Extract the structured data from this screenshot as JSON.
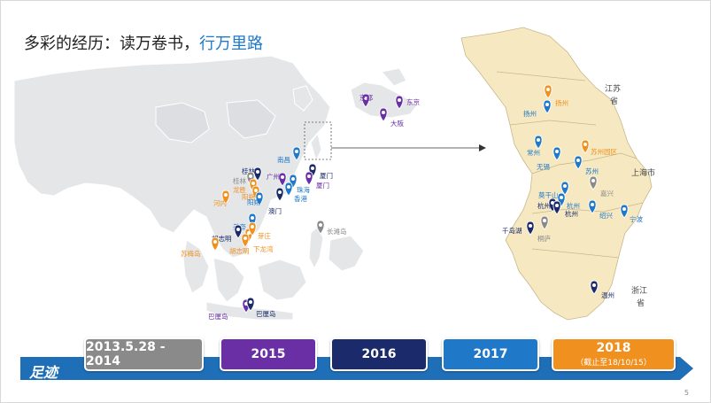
{
  "title": {
    "main": "多彩的经历：读万卷书，",
    "accent": "行万里路"
  },
  "colors": {
    "2014": "#8a8a8a",
    "2015": "#6a2fa5",
    "2016": "#1b2a6b",
    "2017": "#1f78c8",
    "2018": "#f0901e"
  },
  "map_labels": {
    "kyoto": "京都",
    "tokyo": "东京",
    "osaka": "大阪",
    "nanchang": "南昌",
    "xiamen1": "厦门",
    "xiamen2": "厦门",
    "guilin1": "桂林",
    "guilin2": "桂林",
    "guangzhou": "广州",
    "longsheng": "龙胜",
    "zhuhai": "珠海",
    "hongkong": "香港",
    "macau": "澳门",
    "yangshuo1": "阳朔",
    "yangshuo2": "阳朔",
    "hanoi": "河内",
    "changtan": "长滩岛",
    "meinai": "美奈",
    "hcmc1": "胡志明",
    "hcmc2": "胡志明",
    "yazhuang": "芽庄",
    "xialongwan": "下龙湾",
    "sumeidao": "苏梅岛",
    "bali1": "巴厘岛",
    "bali2": "巴厘岛",
    "jiangsu": "江苏",
    "jiangsu_sheng": "省",
    "shanghai": "上海市",
    "zhejiang": "浙江",
    "zhejiang_sheng": "省",
    "yangzhou1": "扬州",
    "yangzhou2": "扬州",
    "changzhou": "常州",
    "suzhou_yuanqu": "苏州园区",
    "wuxi": "无锡",
    "suzhou": "苏州",
    "moganshan": "莫干山",
    "hangzhou1": "杭州",
    "hangzhou2": "杭州",
    "hangzhou3": "杭州",
    "jiaxing": "嘉兴",
    "shaoxing": "绍兴",
    "ningbo": "宁波",
    "qiandaohu": "千岛湖",
    "tonglu": "桐庐",
    "wenzhou": "温州"
  },
  "timeline": {
    "label": "足迹",
    "years": [
      {
        "label": "2013.5.28 - 2014",
        "sub": ""
      },
      {
        "label": "2015",
        "sub": ""
      },
      {
        "label": "2016",
        "sub": ""
      },
      {
        "label": "2017",
        "sub": ""
      },
      {
        "label": "2018",
        "sub": "（截止至18/10/15）"
      }
    ]
  },
  "page_number": "5"
}
